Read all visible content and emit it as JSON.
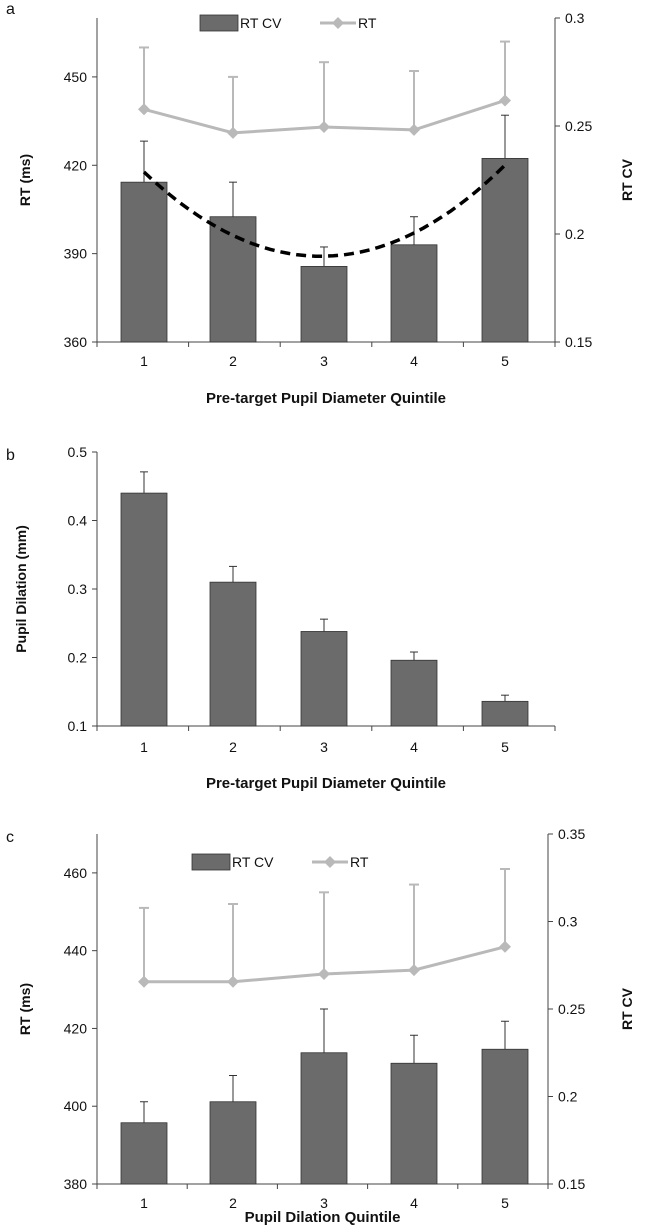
{
  "chart_data": [
    {
      "panel_label": "a",
      "type": "bar",
      "xlabel": "Pre-target Pupil Diameter Quintile",
      "categories": [
        "1",
        "2",
        "3",
        "4",
        "5"
      ],
      "left_axis": {
        "label": "RT (ms)",
        "range": [
          360,
          470
        ],
        "ticks": [
          "360",
          "390",
          "420",
          "450"
        ],
        "tick_values": [
          360,
          390,
          420,
          450
        ]
      },
      "right_axis": {
        "label": "RT CV",
        "range": [
          0.15,
          0.3
        ],
        "ticks": [
          "0.15",
          "0.2",
          "0.25",
          "0.3"
        ],
        "tick_values": [
          0.15,
          0.2,
          0.25,
          0.3
        ]
      },
      "legend": {
        "placement": "top-center",
        "items": [
          "RT CV",
          "RT"
        ]
      },
      "series": [
        {
          "name": "RT CV",
          "kind": "bar",
          "axis": "right",
          "color": "#6b6b6b",
          "values": [
            0.224,
            0.208,
            0.185,
            0.195,
            0.235
          ],
          "error": [
            0.019,
            0.016,
            0.009,
            0.013,
            0.02
          ]
        },
        {
          "name": "RT",
          "kind": "line",
          "axis": "left",
          "color": "#b9b9b9",
          "values": [
            439,
            431,
            433,
            432,
            442
          ],
          "error": [
            21,
            19,
            22,
            20,
            20
          ]
        }
      ],
      "trendline": {
        "kind": "quadratic",
        "axis": "right",
        "color": "#000000",
        "x": [
          1,
          2,
          3,
          4,
          5
        ],
        "values": [
          0.228,
          0.201,
          0.188,
          0.201,
          0.232
        ]
      }
    },
    {
      "panel_label": "b",
      "type": "bar",
      "xlabel": "Pre-target Pupil Diameter Quintile",
      "categories": [
        "1",
        "2",
        "3",
        "4",
        "5"
      ],
      "left_axis": {
        "label": "Pupil Dilation (mm)",
        "range": [
          0.1,
          0.5
        ],
        "ticks": [
          "0.1",
          "0.2",
          "0.3",
          "0.4",
          "0.5"
        ],
        "tick_values": [
          0.1,
          0.2,
          0.3,
          0.4,
          0.5
        ]
      },
      "series": [
        {
          "name": "",
          "kind": "bar",
          "axis": "left",
          "color": "#6b6b6b",
          "values": [
            0.44,
            0.31,
            0.238,
            0.196,
            0.136
          ],
          "error": [
            0.031,
            0.023,
            0.018,
            0.012,
            0.009
          ]
        }
      ]
    },
    {
      "panel_label": "c",
      "type": "bar",
      "xlabel": "Pupil Dilation Quintile",
      "categories": [
        "1",
        "2",
        "3",
        "4",
        "5"
      ],
      "left_axis": {
        "label": "RT (ms)",
        "range": [
          380,
          470
        ],
        "ticks": [
          "380",
          "400",
          "420",
          "440",
          "460"
        ],
        "tick_values": [
          380,
          400,
          420,
          440,
          460
        ]
      },
      "right_axis": {
        "label": "RT CV",
        "range": [
          0.15,
          0.35
        ],
        "ticks": [
          "0.15",
          "0.2",
          "0.25",
          "0.3",
          "0.35"
        ],
        "tick_values": [
          0.15,
          0.2,
          0.25,
          0.3,
          0.35
        ]
      },
      "legend": {
        "placement": "top-center",
        "items": [
          "RT CV",
          "RT"
        ]
      },
      "series": [
        {
          "name": "RT CV",
          "kind": "bar",
          "axis": "right",
          "color": "#6b6b6b",
          "values": [
            0.185,
            0.197,
            0.225,
            0.219,
            0.227
          ],
          "error": [
            0.012,
            0.015,
            0.025,
            0.016,
            0.016
          ]
        },
        {
          "name": "RT",
          "kind": "line",
          "axis": "left",
          "color": "#b9b9b9",
          "values": [
            432,
            432,
            434,
            435,
            441
          ],
          "error": [
            19,
            20,
            21,
            22,
            20
          ]
        }
      ]
    }
  ]
}
